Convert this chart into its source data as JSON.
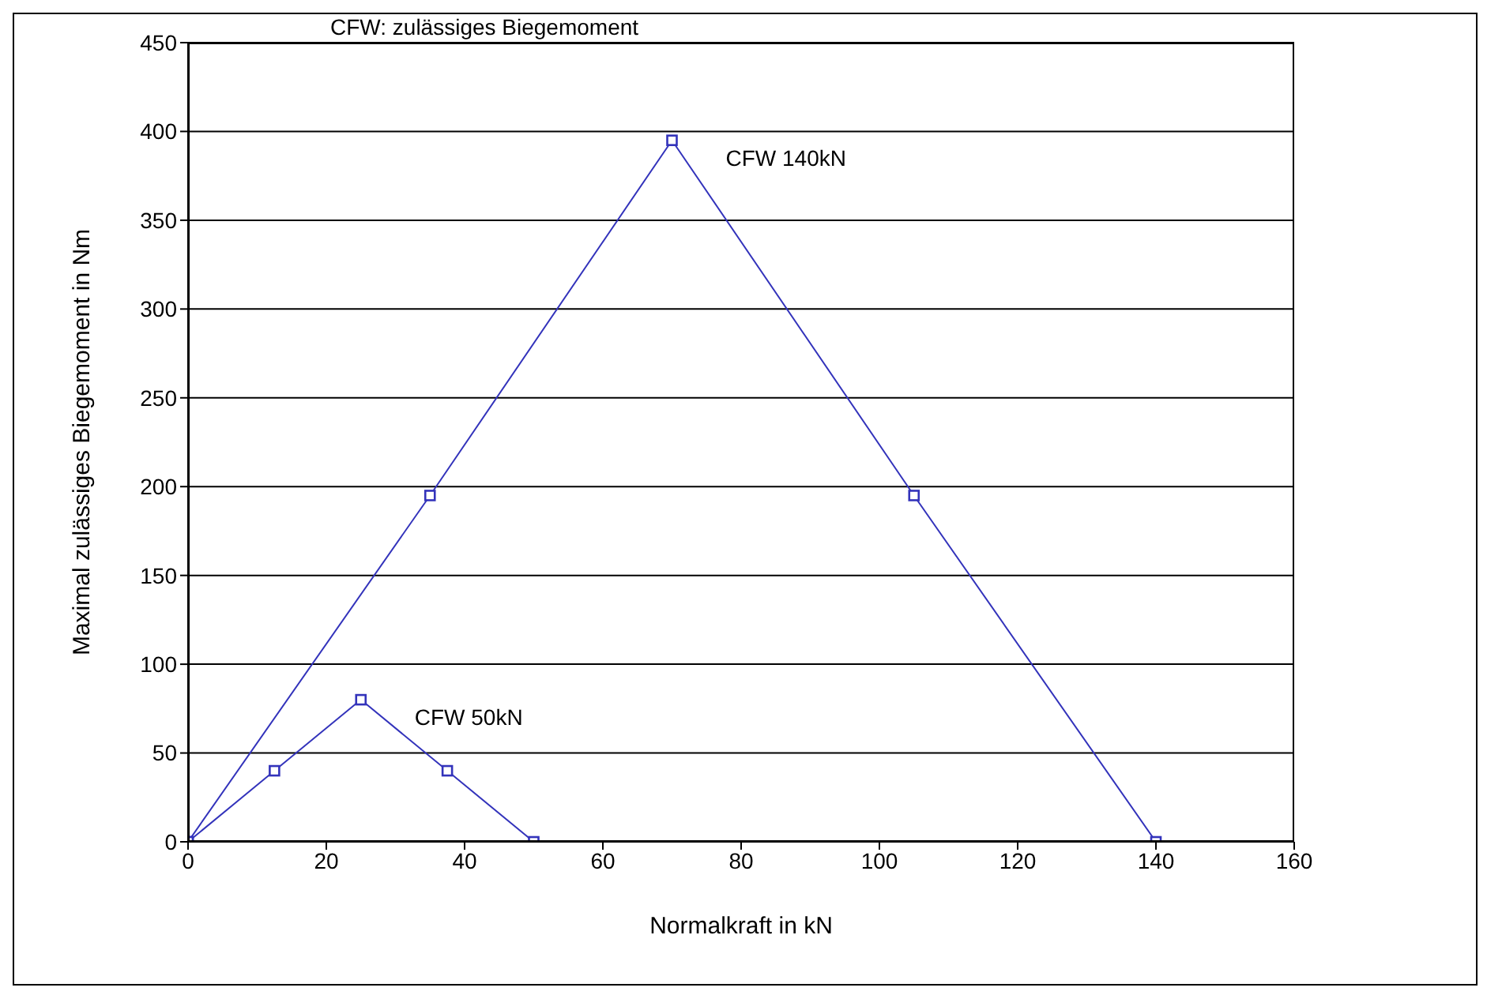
{
  "chart_data": {
    "type": "line",
    "title": "CFW: zulässiges Biegemoment",
    "xlabel": "Normalkraft in kN",
    "ylabel": "Maximal zulässiges Biegemoment in Nm",
    "series": [
      {
        "name": "CFW 140kN",
        "color": "#3333bb",
        "x": [
          0,
          35,
          70,
          105,
          140
        ],
        "values": [
          0,
          195,
          395,
          195,
          0
        ]
      },
      {
        "name": "CFW 50kN",
        "color": "#3333bb",
        "x": [
          0,
          12.5,
          25,
          37.5,
          50
        ],
        "values": [
          0,
          40,
          80,
          40,
          0
        ]
      }
    ],
    "xlim": [
      0,
      160
    ],
    "xticks": [
      0,
      20,
      40,
      60,
      80,
      100,
      120,
      140,
      160
    ],
    "ylim": [
      0,
      450
    ],
    "yticks": [
      0,
      50,
      100,
      150,
      200,
      250,
      300,
      350,
      400,
      450
    ],
    "grid": "y",
    "marker": "square",
    "line_style": "solid",
    "legend": false
  }
}
